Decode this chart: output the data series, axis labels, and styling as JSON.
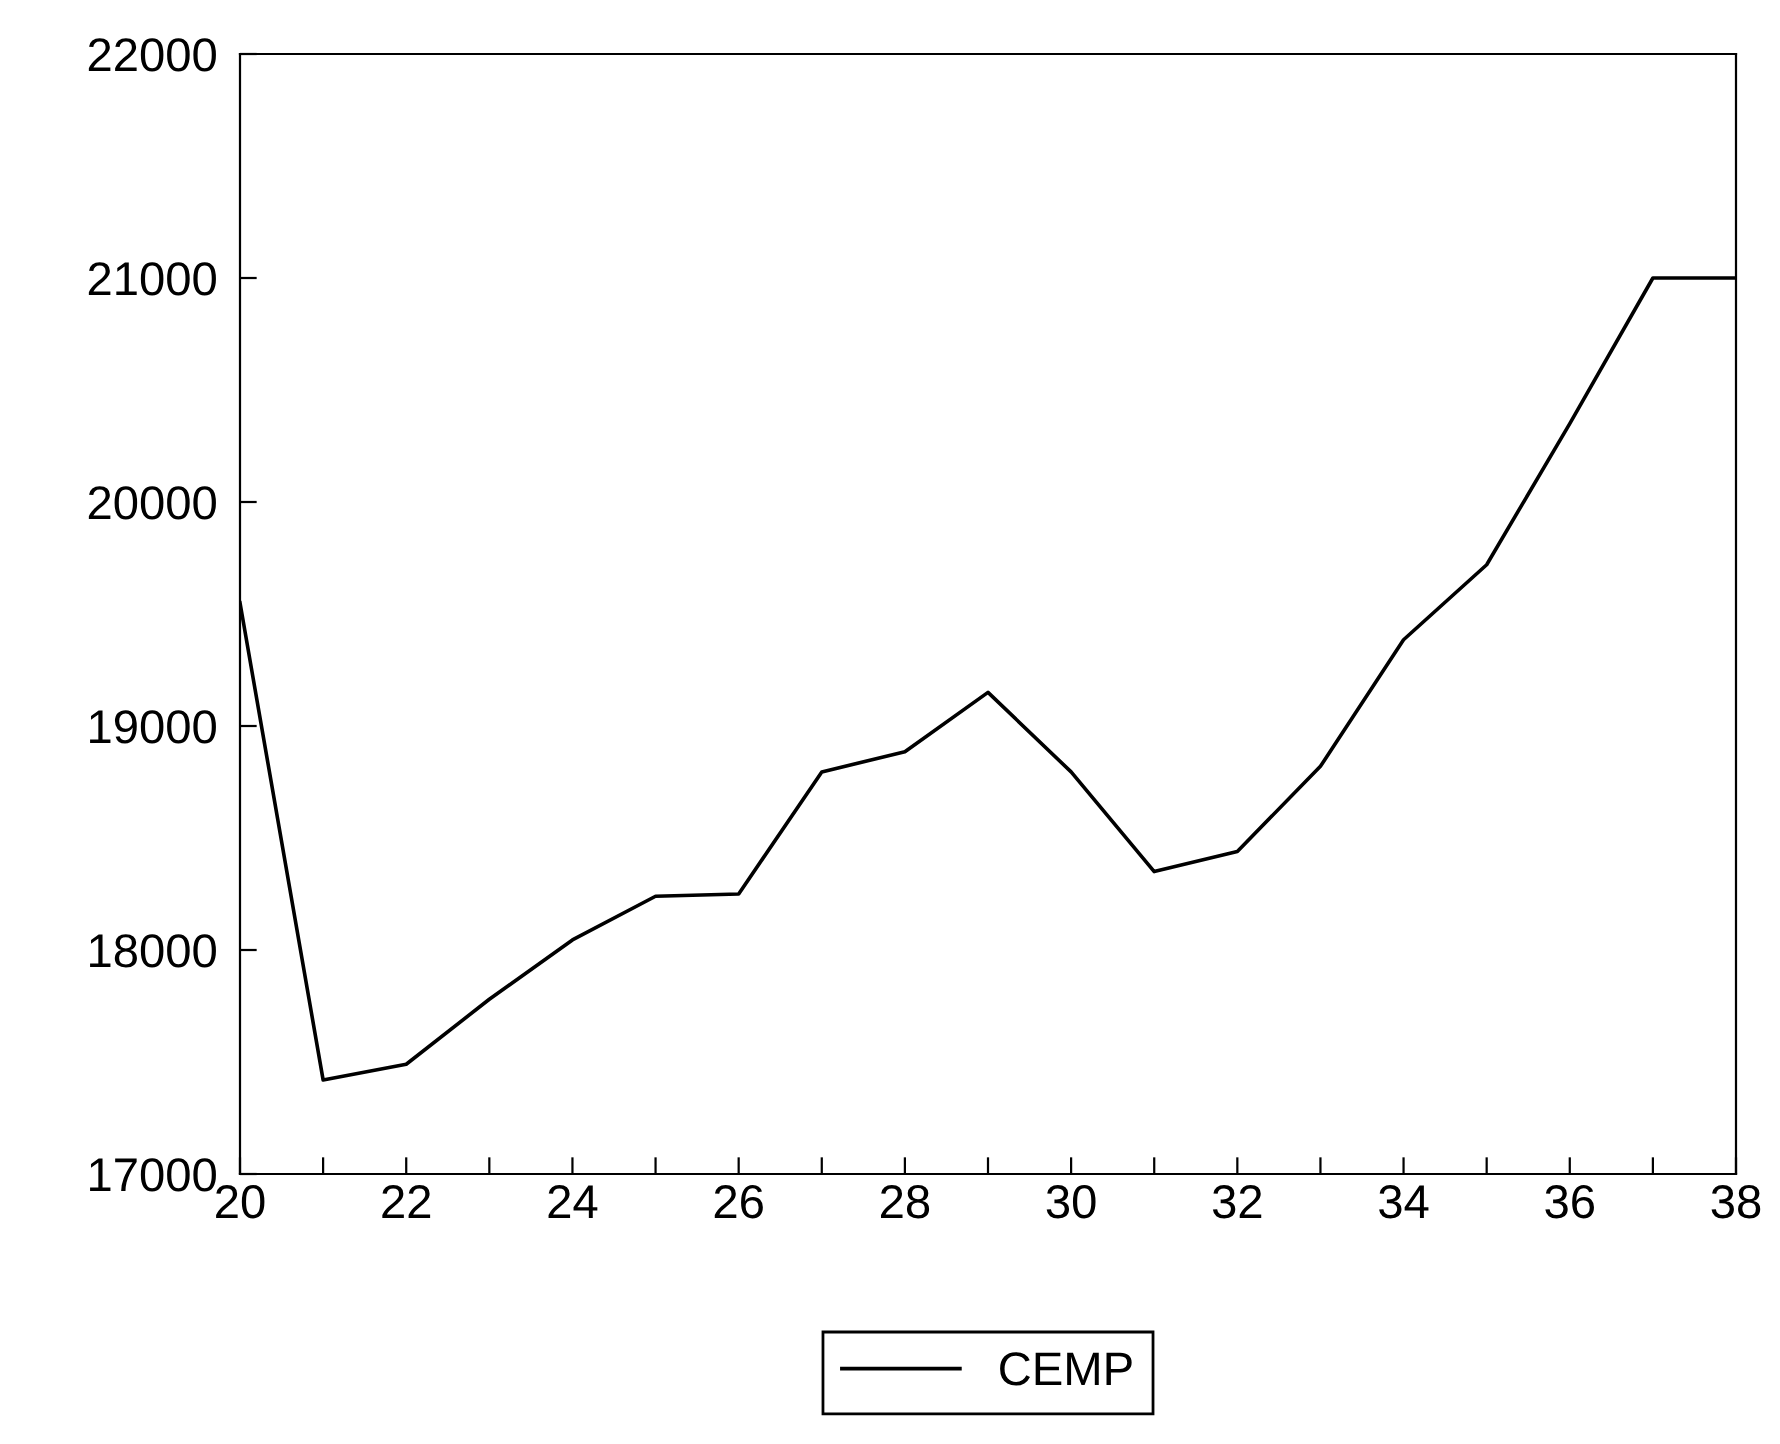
{
  "chart_data": {
    "type": "line",
    "x": [
      20,
      21,
      22,
      23,
      24,
      25,
      26,
      27,
      28,
      29,
      30,
      31,
      32,
      33,
      34,
      35,
      36,
      37,
      38
    ],
    "series": [
      {
        "name": "CEMP",
        "color": "#000000",
        "values": [
          19550,
          17420,
          17490,
          17780,
          18045,
          18240,
          18250,
          18795,
          18885,
          19150,
          18795,
          18350,
          18440,
          18820,
          19385,
          19720,
          20350,
          21000,
          21000
        ]
      }
    ],
    "xlim": [
      20,
      38
    ],
    "xticks": [
      20,
      {
        "value": 21,
        "label": null
      },
      22,
      {
        "value": 23,
        "label": null
      },
      24,
      {
        "value": 25,
        "label": null
      },
      26,
      {
        "value": 27,
        "label": null
      },
      28,
      {
        "value": 29,
        "label": null
      },
      30,
      {
        "value": 31,
        "label": null
      },
      32,
      {
        "value": 33,
        "label": null
      },
      34,
      {
        "value": 35,
        "label": null
      },
      36,
      {
        "value": 37,
        "label": null
      },
      38
    ],
    "ylim": [
      17000,
      22000
    ],
    "yticks": [
      17000,
      18000,
      19000,
      20000,
      21000,
      22000
    ],
    "grid": false,
    "legend": "bottom",
    "marker": "none",
    "line_style": "solid"
  }
}
